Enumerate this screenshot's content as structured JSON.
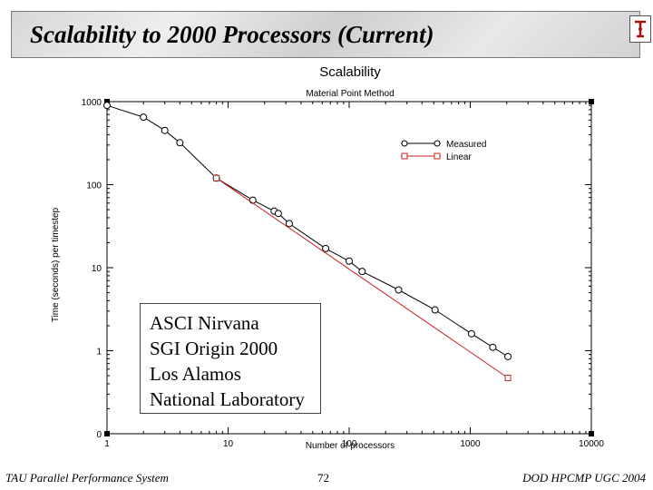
{
  "slide": {
    "title": "Scalability to 2000 Processors (Current)",
    "footer_left": "TAU Parallel Performance System",
    "page_number": "72",
    "footer_right": "DOD HPCMP UGC 2004"
  },
  "annotation": {
    "lines": [
      "ASCI Nirvana",
      "SGI Origin 2000",
      "Los Alamos",
      "National Laboratory"
    ]
  },
  "chart_data": {
    "type": "line",
    "title": "Scalability",
    "subtitle": "Material Point Method",
    "xlabel": "Number of processors",
    "ylabel": "Time (seconds) per timestep",
    "xscale": "log",
    "yscale": "log",
    "xlim": [
      1,
      10000
    ],
    "ylim": [
      0.1,
      1000
    ],
    "xticks": [
      1,
      10,
      100,
      1000,
      10000
    ],
    "xtick_labels": [
      "1",
      "10",
      "100",
      "1000",
      "10000"
    ],
    "yticks": [
      0.1,
      1,
      10,
      100,
      1000
    ],
    "ytick_labels": [
      "0",
      "1",
      "10",
      "100",
      "1000"
    ],
    "legend_position": "top-right",
    "series": [
      {
        "name": "Measured",
        "color": "#000000",
        "marker": "circle",
        "x": [
          1,
          2,
          3,
          4,
          8,
          16,
          24,
          26,
          32,
          64,
          100,
          128,
          256,
          512,
          1024,
          1536,
          2048
        ],
        "y": [
          900,
          650,
          450,
          320,
          120,
          65,
          48,
          45,
          34,
          17,
          12,
          9,
          5.4,
          3.1,
          1.6,
          1.1,
          0.85
        ]
      },
      {
        "name": "Linear",
        "color": "#cc2222",
        "marker": "square",
        "x": [
          8,
          2048
        ],
        "y": [
          120,
          0.47
        ]
      }
    ],
    "colors": {
      "axis": "#000000",
      "measured": "#000000",
      "linear": "#cc2222"
    }
  }
}
